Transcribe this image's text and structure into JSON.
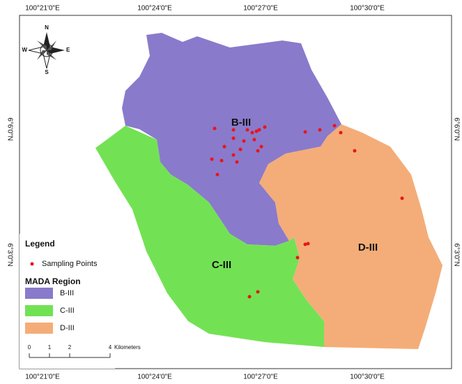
{
  "map": {
    "top_labels": [
      "100°21'0\"E",
      "100°24'0\"E",
      "100°27'0\"E",
      "100°30'0\"E"
    ],
    "bottom_labels": [
      "100°21'0\"E",
      "100°24'0\"E",
      "100°27'0\"E",
      "100°30'0\"E"
    ],
    "left_labels": [
      "6°6'0\"N",
      "6°3'0\"N"
    ],
    "right_labels": [
      "6°6'0\"N",
      "6°3'0\"N"
    ],
    "compass": {
      "n": "N",
      "s": "S",
      "w": "W",
      "e": "E"
    },
    "regions": [
      "B-III",
      "C-III",
      "D-III"
    ],
    "legend": {
      "title": "Legend",
      "points": "Sampling Points",
      "region_title": "MADA Region",
      "items": [
        {
          "label": "B-III",
          "color": "#8a7acb"
        },
        {
          "label": "C-III",
          "color": "#72e254"
        },
        {
          "label": "D-III",
          "color": "#f4ad78"
        }
      ]
    },
    "scale": {
      "ticks": [
        0,
        1,
        2,
        4
      ],
      "unit": "Kilometers"
    }
  }
}
